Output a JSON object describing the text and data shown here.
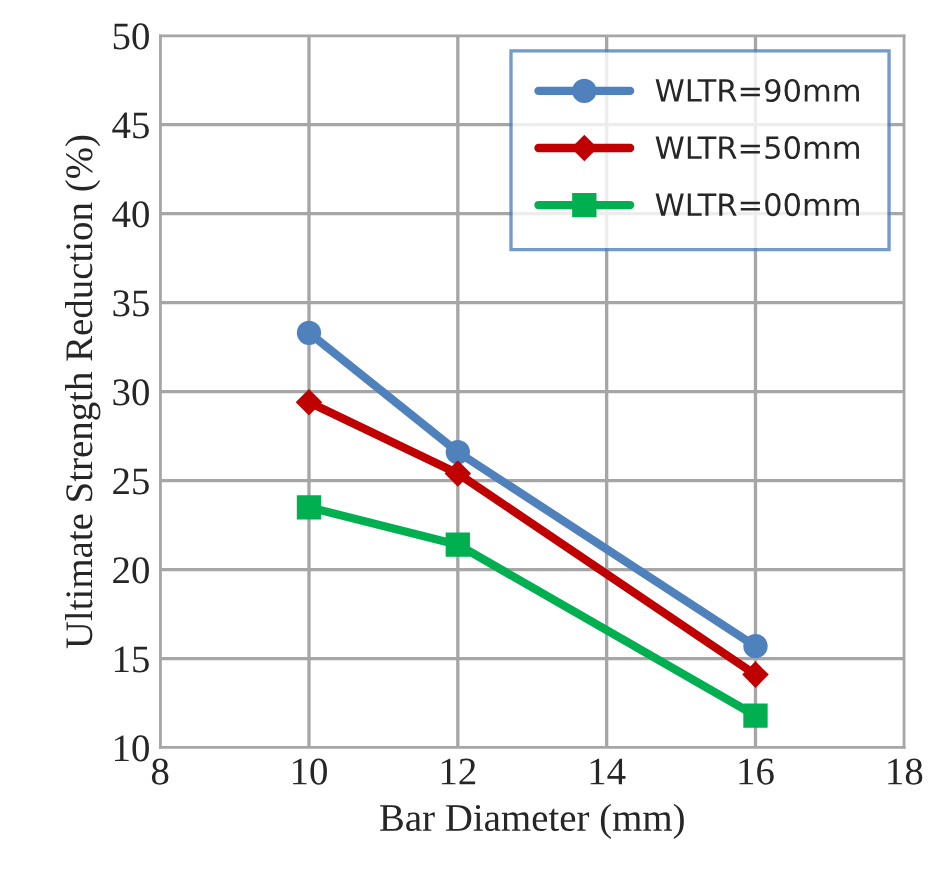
{
  "chart_data": {
    "type": "line",
    "xlabel": "Bar Diameter (mm)",
    "ylabel": "Ultimate Strength Reduction (%)",
    "x": [
      10,
      12,
      16
    ],
    "series": [
      {
        "name": "WLTR=90mm",
        "color": "#4f81bd",
        "marker": "circle",
        "values": [
          33.3,
          26.6,
          15.7
        ]
      },
      {
        "name": "WLTR=50mm",
        "color": "#c00000",
        "marker": "diamond",
        "values": [
          29.4,
          25.4,
          14.1
        ]
      },
      {
        "name": "WLTR=00mm",
        "color": "#00b050",
        "marker": "square",
        "values": [
          23.5,
          21.4,
          11.8
        ]
      }
    ],
    "xlim": [
      8,
      18
    ],
    "xticks": [
      8,
      10,
      12,
      14,
      16,
      18
    ],
    "ylim": [
      10,
      50
    ],
    "yticks": [
      10,
      15,
      20,
      25,
      30,
      35,
      40,
      45,
      50
    ],
    "grid": true,
    "legend": "top right"
  }
}
